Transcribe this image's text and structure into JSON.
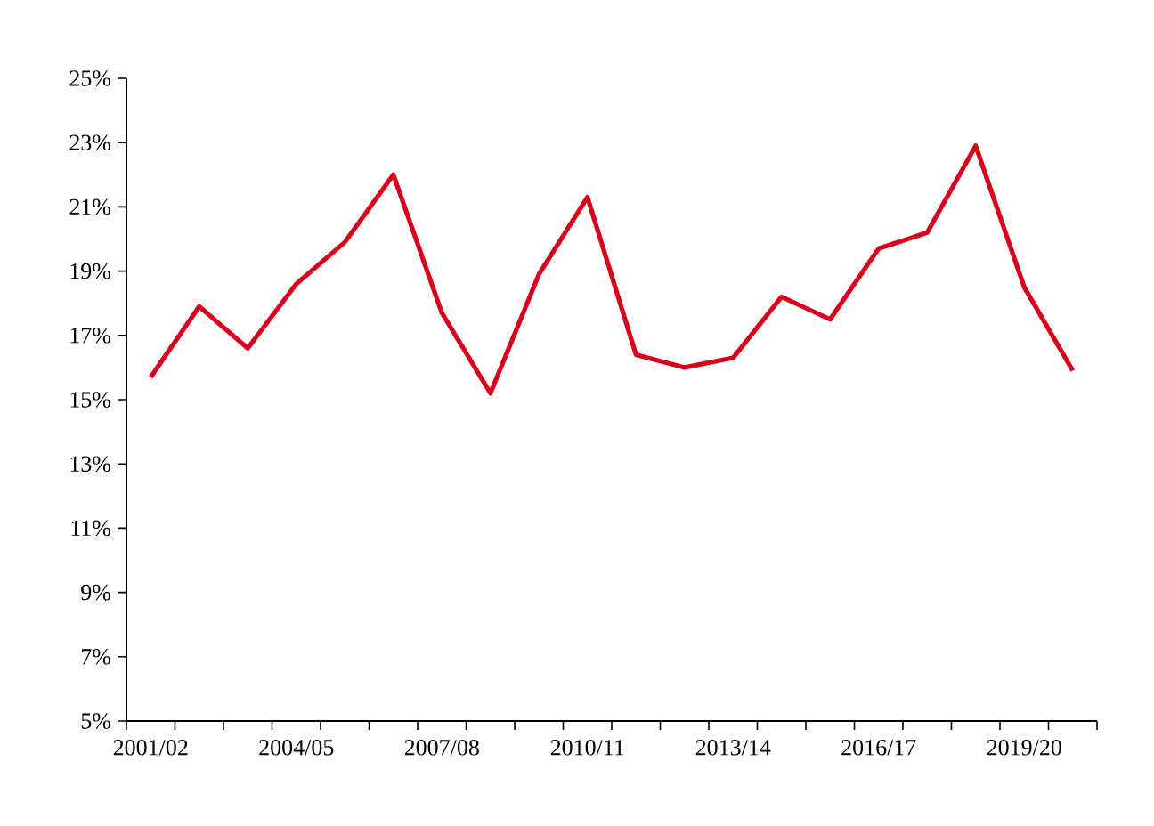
{
  "chart_data": {
    "type": "line",
    "categories": [
      "2001/02",
      null,
      null,
      "2004/05",
      null,
      null,
      "2007/08",
      null,
      null,
      "2010/11",
      null,
      null,
      "2013/14",
      null,
      null,
      "2016/17",
      null,
      null,
      "2019/20",
      null
    ],
    "series": [
      {
        "color": "#d9001b",
        "values": [
          15.7,
          17.9,
          16.6,
          18.6,
          19.9,
          22.0,
          17.7,
          15.2,
          18.9,
          21.3,
          16.4,
          16.0,
          16.3,
          18.2,
          17.5,
          19.7,
          20.2,
          22.9,
          18.5,
          15.9
        ]
      }
    ],
    "ylim": [
      5,
      25
    ],
    "yticks": [
      {
        "value": 5,
        "label": "5%"
      },
      {
        "value": 7,
        "label": "7%"
      },
      {
        "value": 9,
        "label": "9%"
      },
      {
        "value": 11,
        "label": "11%"
      },
      {
        "value": 13,
        "label": "13%"
      },
      {
        "value": 15,
        "label": "15%"
      },
      {
        "value": 17,
        "label": "17%"
      },
      {
        "value": 19,
        "label": "19%"
      },
      {
        "value": 21,
        "label": "21%"
      },
      {
        "value": 23,
        "label": "23%"
      },
      {
        "value": 25,
        "label": "25%"
      }
    ],
    "grid": false,
    "legend": false,
    "marker": "none",
    "line_style": "solid"
  }
}
